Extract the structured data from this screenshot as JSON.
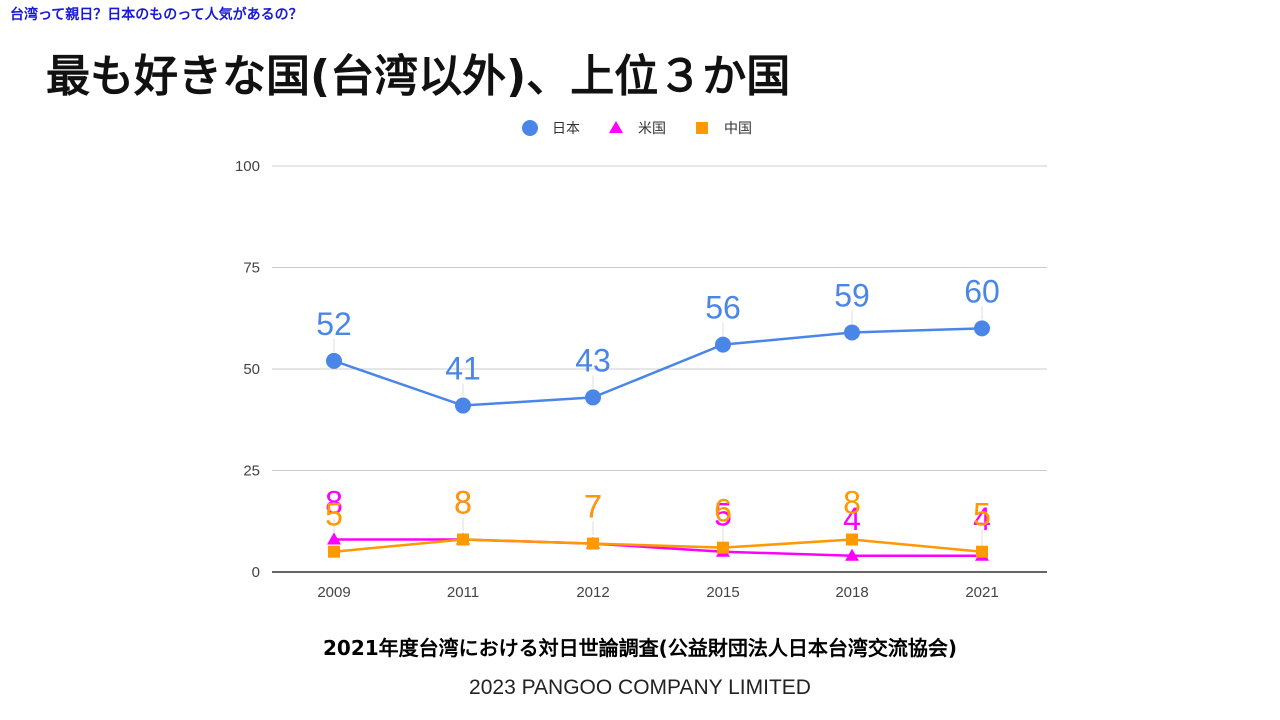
{
  "header": {
    "top_link": "台湾って親日？日本のものって人気があるの？"
  },
  "slide": {
    "title": "最も好きな国(台湾以外)、上位３か国",
    "caption": "2021年度台湾における対日世論調査(公益財団法人日本台湾交流協会)",
    "footer": "2023 PANGOO COMPANY LIMITED"
  },
  "chart_data": {
    "type": "line",
    "categories": [
      "2009",
      "2011",
      "2012",
      "2015",
      "2018",
      "2021"
    ],
    "series": [
      {
        "name": "日本",
        "values": [
          52,
          41,
          43,
          56,
          59,
          60
        ],
        "color": "#4a86e8",
        "marker": "circle"
      },
      {
        "name": "米国",
        "values": [
          8,
          8,
          7,
          5,
          4,
          4
        ],
        "color": "#ff00ff",
        "marker": "triangle"
      },
      {
        "name": "中国",
        "values": [
          5,
          8,
          7,
          6,
          8,
          5
        ],
        "color": "#ff9900",
        "marker": "square"
      }
    ],
    "yticks": [
      0,
      25,
      50,
      75,
      100
    ],
    "ylim": [
      0,
      100
    ],
    "grid": true,
    "legend_position": "top",
    "data_labels": true
  }
}
